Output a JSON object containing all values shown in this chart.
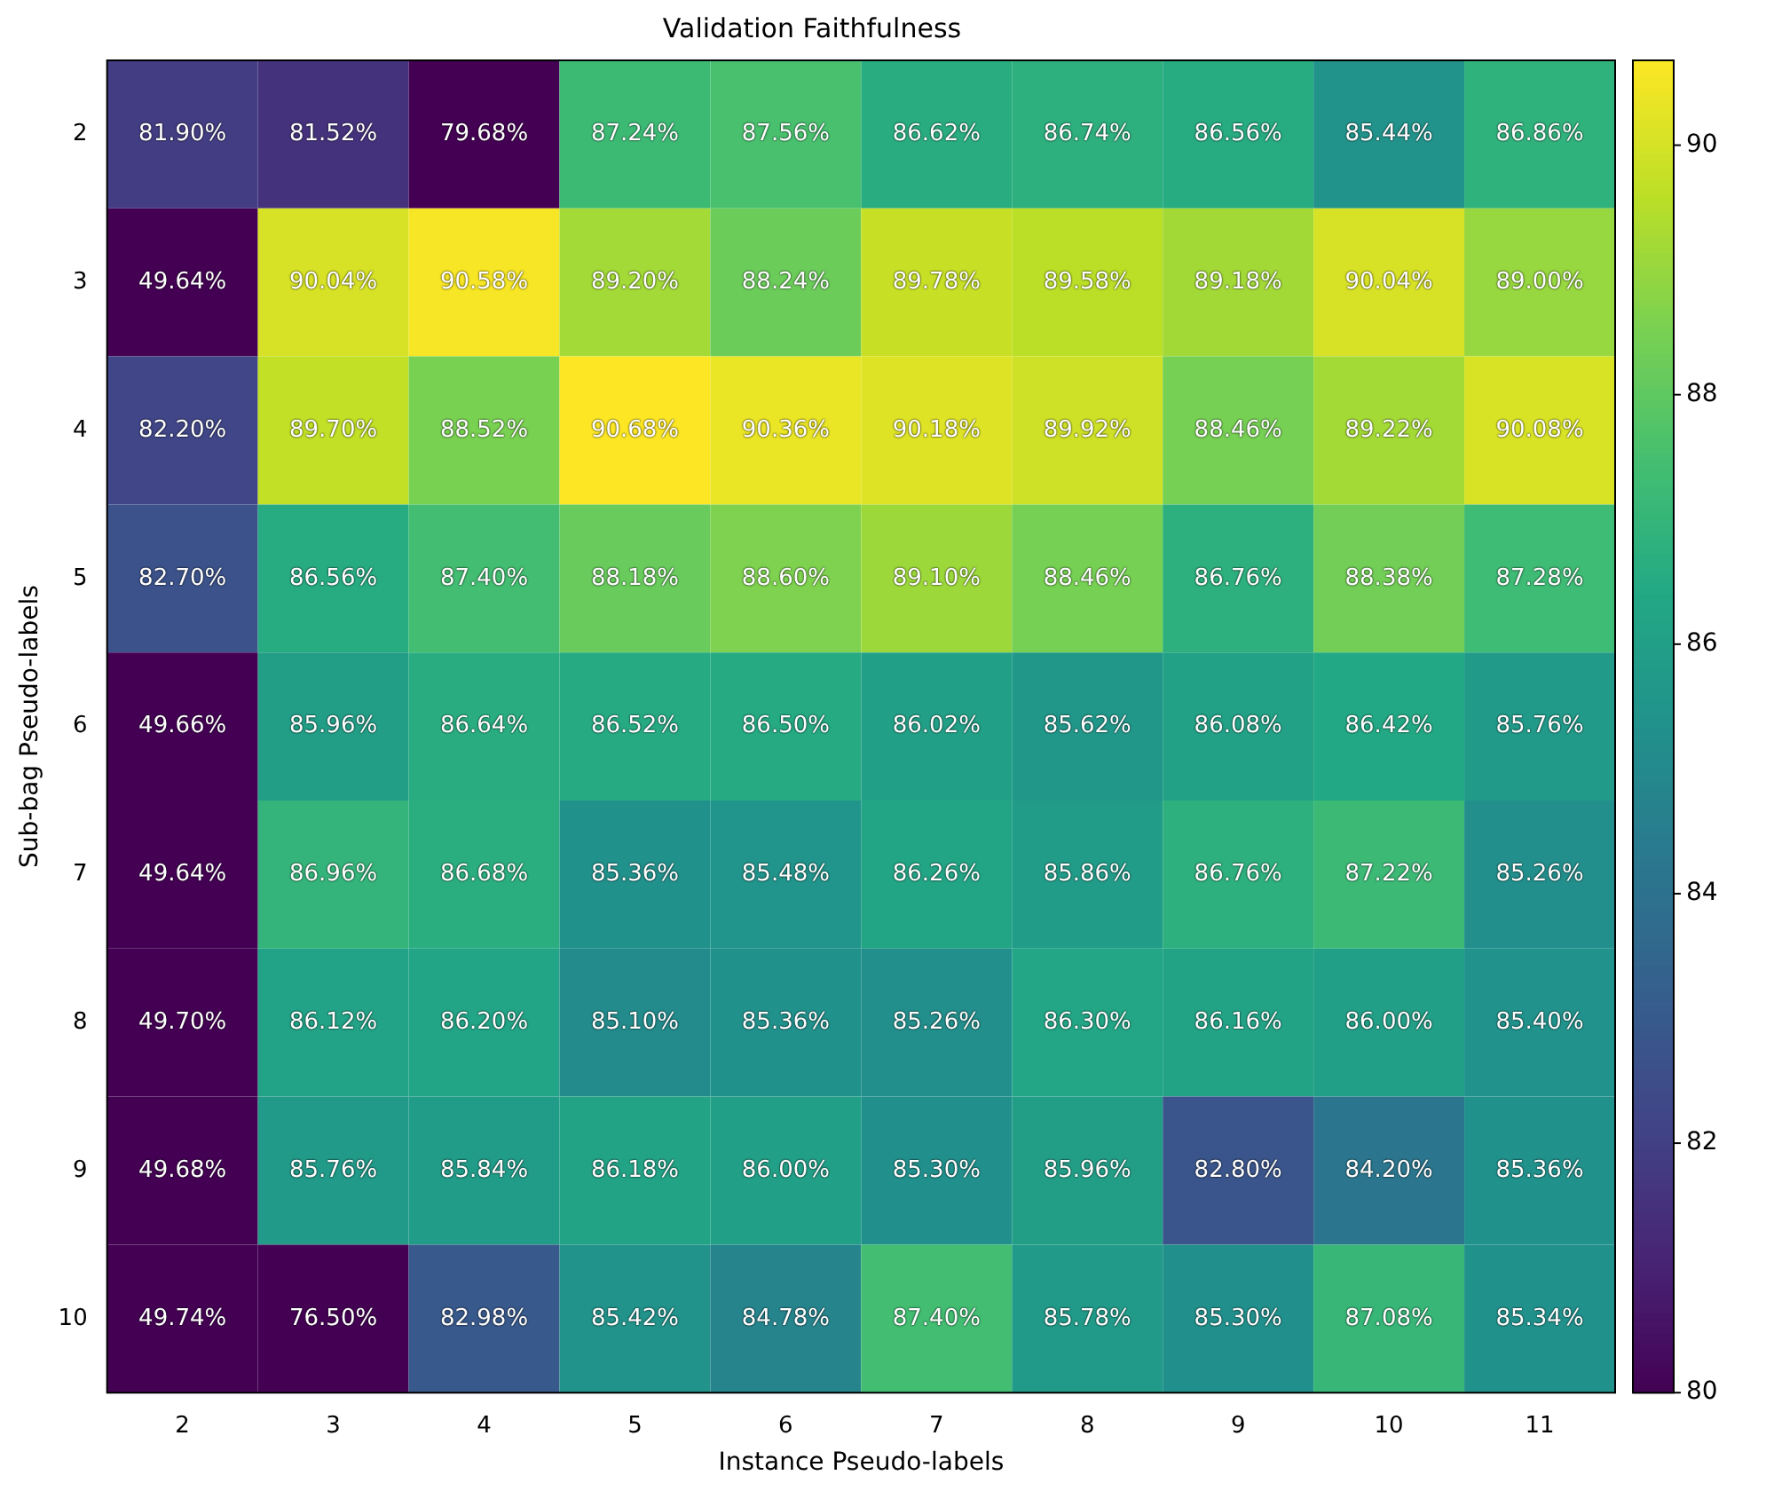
{
  "chart_data": {
    "type": "heatmap",
    "title": "Validation Faithfulness",
    "xlabel": "Instance Pseudo-labels",
    "ylabel": "Sub-bag Pseudo-labels",
    "categories": [
      "2",
      "3",
      "4",
      "5",
      "6",
      "7",
      "8",
      "9",
      "10",
      "11"
    ],
    "y_categories": [
      "2",
      "3",
      "4",
      "5",
      "6",
      "7",
      "8",
      "9",
      "10"
    ],
    "cells": [
      [
        81.9,
        81.52,
        79.68,
        87.24,
        87.56,
        86.62,
        86.74,
        86.56,
        85.44,
        86.86
      ],
      [
        49.64,
        90.04,
        90.58,
        89.2,
        88.24,
        89.78,
        89.58,
        89.18,
        90.04,
        89.0
      ],
      [
        82.2,
        89.7,
        88.52,
        90.68,
        90.36,
        90.18,
        89.92,
        88.46,
        89.22,
        90.08
      ],
      [
        82.7,
        86.56,
        87.4,
        88.18,
        88.6,
        89.1,
        88.46,
        86.76,
        88.38,
        87.28
      ],
      [
        49.66,
        85.96,
        86.64,
        86.52,
        86.5,
        86.02,
        85.62,
        86.08,
        86.42,
        85.76
      ],
      [
        49.64,
        86.96,
        86.68,
        85.36,
        85.48,
        86.26,
        85.86,
        86.76,
        87.22,
        85.26
      ],
      [
        49.7,
        86.12,
        86.2,
        85.1,
        85.36,
        85.26,
        86.3,
        86.16,
        86.0,
        85.4
      ],
      [
        49.68,
        85.76,
        85.84,
        86.18,
        86.0,
        85.3,
        85.96,
        82.8,
        84.2,
        85.36
      ],
      [
        49.74,
        76.5,
        82.98,
        85.42,
        84.78,
        87.4,
        85.78,
        85.3,
        87.08,
        85.34
      ]
    ],
    "cell_labels": [
      [
        "81.90%",
        "81.52%",
        "79.68%",
        "87.24%",
        "87.56%",
        "86.62%",
        "86.74%",
        "86.56%",
        "85.44%",
        "86.86%"
      ],
      [
        "49.64%",
        "90.04%",
        "90.58%",
        "89.20%",
        "88.24%",
        "89.78%",
        "89.58%",
        "89.18%",
        "90.04%",
        "89.00%"
      ],
      [
        "82.20%",
        "89.70%",
        "88.52%",
        "90.68%",
        "90.36%",
        "90.18%",
        "89.92%",
        "88.46%",
        "89.22%",
        "90.08%"
      ],
      [
        "82.70%",
        "86.56%",
        "87.40%",
        "88.18%",
        "88.60%",
        "89.10%",
        "88.46%",
        "86.76%",
        "88.38%",
        "87.28%"
      ],
      [
        "49.66%",
        "85.96%",
        "86.64%",
        "86.52%",
        "86.50%",
        "86.02%",
        "85.62%",
        "86.08%",
        "86.42%",
        "85.76%"
      ],
      [
        "49.64%",
        "86.96%",
        "86.68%",
        "85.36%",
        "85.48%",
        "86.26%",
        "85.86%",
        "86.76%",
        "87.22%",
        "85.26%"
      ],
      [
        "49.70%",
        "86.12%",
        "86.20%",
        "85.10%",
        "85.36%",
        "85.26%",
        "86.30%",
        "86.16%",
        "86.00%",
        "85.40%"
      ],
      [
        "49.68%",
        "85.76%",
        "85.84%",
        "86.18%",
        "86.00%",
        "85.30%",
        "85.96%",
        "82.80%",
        "84.20%",
        "85.36%"
      ],
      [
        "49.74%",
        "76.50%",
        "82.98%",
        "85.42%",
        "84.78%",
        "87.40%",
        "85.78%",
        "85.30%",
        "87.08%",
        "85.34%"
      ]
    ],
    "clim": [
      80,
      90.68
    ],
    "cticks": [
      80,
      82,
      84,
      86,
      88,
      90
    ]
  }
}
